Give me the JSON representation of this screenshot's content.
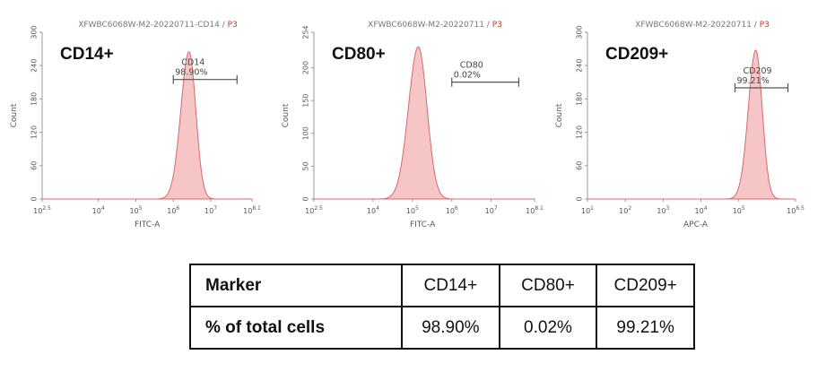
{
  "chart_data": [
    {
      "type": "histogram",
      "title": "XFWBC6068W-M2-20220711-CD14",
      "gate_title": "P3",
      "marker": "CD14+",
      "xlabel": "FITC-A",
      "ylabel": "Count",
      "x_scale": "log",
      "xlim_exp": [
        2.5,
        8.1
      ],
      "x_ticks": [
        {
          "label": "10",
          "exp": "2.5",
          "pos": 2.5
        },
        {
          "label": "10",
          "exp": "4",
          "pos": 4
        },
        {
          "label": "10",
          "exp": "5",
          "pos": 5
        },
        {
          "label": "10",
          "exp": "6",
          "pos": 6
        },
        {
          "label": "10",
          "exp": "7",
          "pos": 7
        },
        {
          "label": "10",
          "exp": "8.1",
          "pos": 8.1
        }
      ],
      "ylim": [
        0,
        300
      ],
      "y_ticks": [
        "0",
        "60",
        "120",
        "180",
        "240",
        "300"
      ],
      "y_tick_values": [
        0,
        60,
        120,
        180,
        240,
        300
      ],
      "peak": {
        "center_exp": 6.42,
        "height": 265,
        "left_width": 0.22,
        "right_width": 0.18
      },
      "gate": {
        "name": "CD14",
        "value": "98.90%",
        "x_start_exp": 6.0,
        "x_end_exp": 7.7,
        "y": 215
      }
    },
    {
      "type": "histogram",
      "title": "XFWBC6068W-M2-20220711",
      "gate_title": "P3",
      "marker": "CD80+",
      "xlabel": "FITC-A",
      "ylabel": "Count",
      "x_scale": "log",
      "xlim_exp": [
        2.5,
        8.1
      ],
      "x_ticks": [
        {
          "label": "10",
          "exp": "2.5",
          "pos": 2.5
        },
        {
          "label": "10",
          "exp": "4",
          "pos": 4
        },
        {
          "label": "10",
          "exp": "5",
          "pos": 5
        },
        {
          "label": "10",
          "exp": "6",
          "pos": 6
        },
        {
          "label": "10",
          "exp": "7",
          "pos": 7
        },
        {
          "label": "10",
          "exp": "8.1",
          "pos": 8.1
        }
      ],
      "ylim": [
        0,
        254
      ],
      "y_ticks": [
        "0",
        "50",
        "100",
        "150",
        "200",
        "254"
      ],
      "y_tick_values": [
        0,
        50,
        100,
        150,
        200,
        254
      ],
      "peak": {
        "center_exp": 5.15,
        "height": 232,
        "left_width": 0.25,
        "right_width": 0.22
      },
      "gate": {
        "name": "CD80",
        "value": "0.02%",
        "x_start_exp": 6.0,
        "x_end_exp": 7.7,
        "y": 178
      }
    },
    {
      "type": "histogram",
      "title": "XFWBC6068W-M2-20220711",
      "gate_title": "P3",
      "marker": "CD209+",
      "xlabel": "APC-A",
      "ylabel": "Count",
      "x_scale": "log",
      "xlim_exp": [
        1,
        6.5
      ],
      "x_ticks": [
        {
          "label": "10",
          "exp": "1",
          "pos": 1
        },
        {
          "label": "10",
          "exp": "2",
          "pos": 2
        },
        {
          "label": "10",
          "exp": "3",
          "pos": 3
        },
        {
          "label": "10",
          "exp": "4",
          "pos": 4
        },
        {
          "label": "10",
          "exp": "5",
          "pos": 5
        },
        {
          "label": "10",
          "exp": "6.5",
          "pos": 6.5
        }
      ],
      "ylim": [
        0,
        300
      ],
      "y_ticks": [
        "0",
        "60",
        "120",
        "180",
        "240",
        "300"
      ],
      "y_tick_values": [
        0,
        60,
        120,
        180,
        240,
        300
      ],
      "peak": {
        "center_exp": 5.45,
        "height": 268,
        "left_width": 0.2,
        "right_width": 0.17
      },
      "gate": {
        "name": "CD209",
        "value": "99.21%",
        "x_start_exp": 4.9,
        "x_end_exp": 6.3,
        "y": 200
      }
    }
  ],
  "table": {
    "header_label": "Marker",
    "row_label": "% of total cells",
    "columns": [
      "CD14+",
      "CD80+",
      "CD209+"
    ],
    "values": [
      "98.90%",
      "0.02%",
      "99.21%"
    ]
  }
}
